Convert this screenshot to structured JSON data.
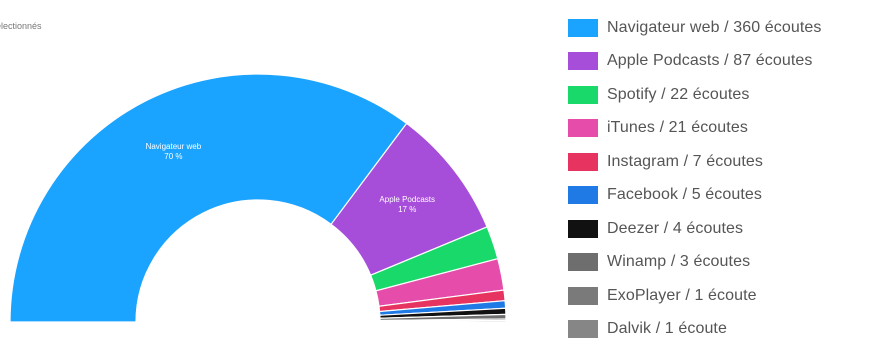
{
  "caption": "électionnés",
  "chart_data": {
    "type": "pie",
    "variant": "semi-donut",
    "legend_position": "right",
    "slices": [
      {
        "name": "Navigateur web",
        "value": 360,
        "color": "#1aa3ff",
        "label_name": "Navigateur web",
        "label_pct": "70 %"
      },
      {
        "name": "Apple Podcasts",
        "value": 87,
        "color": "#a64dd9",
        "label_name": "Apple Podcasts",
        "label_pct": "17 %"
      },
      {
        "name": "Spotify",
        "value": 22,
        "color": "#1ad96b"
      },
      {
        "name": "iTunes",
        "value": 21,
        "color": "#e64daa"
      },
      {
        "name": "Instagram",
        "value": 7,
        "color": "#e6335f"
      },
      {
        "name": "Facebook",
        "value": 5,
        "color": "#1f7ae6"
      },
      {
        "name": "Deezer",
        "value": 4,
        "color": "#111111"
      },
      {
        "name": "Winamp",
        "value": 3,
        "color": "#6e6e6e"
      },
      {
        "name": "ExoPlayer",
        "value": 1,
        "color": "#7a7a7a"
      },
      {
        "name": "Dalvik",
        "value": 1,
        "color": "#868686"
      }
    ]
  },
  "legend": [
    {
      "label": "Navigateur web / 360 écoutes",
      "color": "#1aa3ff"
    },
    {
      "label": "Apple Podcasts / 87 écoutes",
      "color": "#a64dd9"
    },
    {
      "label": "Spotify / 22 écoutes",
      "color": "#1ad96b"
    },
    {
      "label": "iTunes / 21 écoutes",
      "color": "#e64daa"
    },
    {
      "label": "Instagram / 7 écoutes",
      "color": "#e6335f"
    },
    {
      "label": "Facebook / 5 écoutes",
      "color": "#1f7ae6"
    },
    {
      "label": "Deezer / 4 écoutes",
      "color": "#111111"
    },
    {
      "label": "Winamp / 3 écoutes",
      "color": "#6e6e6e"
    },
    {
      "label": "ExoPlayer / 1 écoute",
      "color": "#7a7a7a"
    },
    {
      "label": "Dalvik / 1 écoute",
      "color": "#868686"
    }
  ]
}
